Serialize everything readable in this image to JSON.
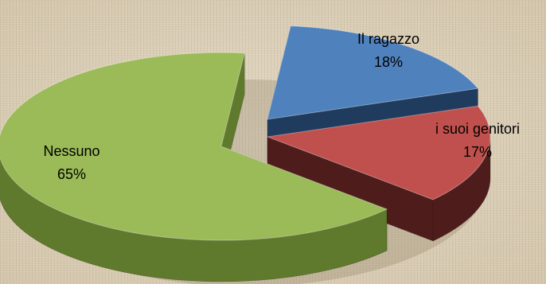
{
  "chart_data": {
    "type": "pie",
    "title": "",
    "slices": [
      {
        "label": "Il ragazzo",
        "value": 18,
        "pct_text": "18%",
        "color": "#4f81bd",
        "side_color": "#1f3b5e"
      },
      {
        "label": "i suoi genitori",
        "value": 17,
        "pct_text": "17%",
        "color": "#c0504d",
        "side_color": "#4f1c1c"
      },
      {
        "label": "Nessuno",
        "value": 65,
        "pct_text": "65%",
        "color": "#9bbb59",
        "side_color": "#5f7a2c"
      }
    ]
  }
}
